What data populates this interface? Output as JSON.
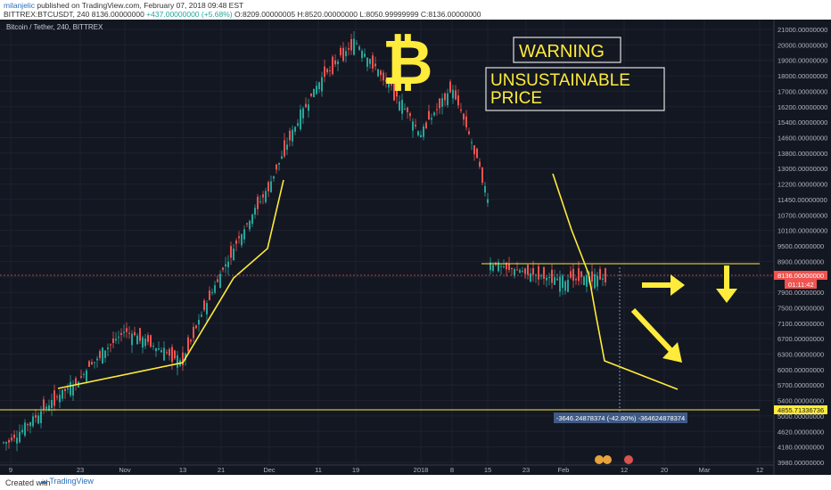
{
  "header": {
    "author": "milanjelic",
    "published": "published on TradingView.com, February 07, 2018 09:48 EST",
    "symbol": "BITTREX:BTCUSDT, 240",
    "price": "8136.00000000",
    "change": "+437.00000000 (+5.68%)",
    "ohlc": "O:8209.00000005 H:8520.00000000 L:8050.99999999 C:8136.00000000"
  },
  "chart_label": "Bitcoin / Tether, 240, BITTREX",
  "footer": {
    "created": "Created with",
    "brand": "TradingView"
  },
  "chart_data": {
    "type": "line",
    "title": "Bitcoin / Tether, 240, BITTREX",
    "y_axis_ticks": [
      "21000.00000000",
      "20000.00000000",
      "19000.00000000",
      "18000.00000000",
      "17000.00000000",
      "16200.00000000",
      "15400.00000000",
      "14600.00000000",
      "13800.00000000",
      "13000.00000000",
      "12200.00000000",
      "11450.00000000",
      "10700.00000000",
      "10100.00000000",
      "9500.00000000",
      "8900.00000000",
      "8300.00000000",
      "7900.00000000",
      "7500.00000000",
      "7100.00000000",
      "6700.00000000",
      "6300.00000000",
      "6000.00000000",
      "5700.00000000",
      "5400.00000000",
      "5000.00000000",
      "4620.00000000",
      "4180.00000000",
      "3980.00000000"
    ],
    "x_axis_ticks": [
      "9",
      "23",
      "Nov",
      "13",
      "21",
      "Dec",
      "11",
      "19",
      "2018",
      "8",
      "15",
      "23",
      "Feb",
      "12",
      "20",
      "Mar",
      "12"
    ],
    "price_tag": "8136.00000000",
    "timer_tag": "01:11:42",
    "low_tag": "4855.71336736",
    "measure_label": "-3646.24878374 (-42.80%) -364624878374",
    "annotations": {
      "bitcoin_symbol": "₿",
      "warning": "WARNING",
      "unsustainable": "UNSUSTAINABLE PRICE"
    },
    "colors": {
      "up": "#26a69a",
      "down": "#ef5350",
      "trend": "#ffeb3b",
      "background": "#131722"
    },
    "price_path": [
      [
        "9",
        4300
      ],
      [
        "23",
        5500
      ],
      [
        "Nov",
        6600
      ],
      [
        "13",
        5850
      ],
      [
        "21",
        8200
      ],
      [
        "Dec",
        11450
      ],
      [
        "11",
        17000
      ],
      [
        "19",
        20000
      ],
      [
        "2018",
        14000
      ],
      [
        "8",
        16800
      ],
      [
        "15",
        11000
      ],
      [
        "23",
        11500
      ],
      [
        "Feb",
        8000
      ],
      [
        "12",
        8136
      ]
    ]
  }
}
